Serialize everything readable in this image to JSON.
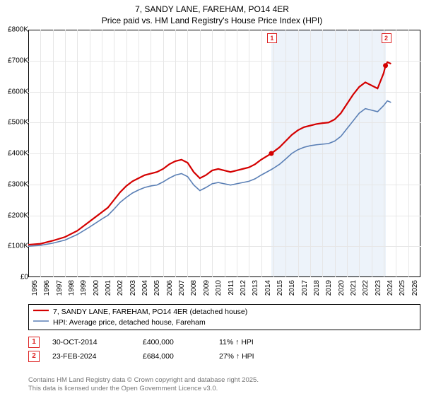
{
  "title_line1": "7, SANDY LANE, FAREHAM, PO14 4ER",
  "title_line2": "Price paid vs. HM Land Registry's House Price Index (HPI)",
  "chart": {
    "type": "line",
    "background_color": "#ffffff",
    "grid_color": "#e6e6e6",
    "highlight_band_color": "#e6eef8",
    "x_years": [
      1995,
      1996,
      1997,
      1998,
      1999,
      2000,
      2001,
      2002,
      2003,
      2004,
      2005,
      2006,
      2007,
      2008,
      2009,
      2010,
      2011,
      2012,
      2013,
      2014,
      2015,
      2016,
      2017,
      2018,
      2019,
      2020,
      2021,
      2022,
      2023,
      2024,
      2025,
      2026,
      2027
    ],
    "x_min": 1995,
    "x_max": 2027,
    "y_ticks": [
      0,
      100,
      200,
      300,
      400,
      500,
      600,
      700,
      800
    ],
    "y_tick_labels": [
      "£0",
      "£100K",
      "£200K",
      "£300K",
      "£400K",
      "£500K",
      "£600K",
      "£700K",
      "£800K"
    ],
    "y_min": 0,
    "y_max": 800,
    "highlight_x_from": 2014.83,
    "highlight_x_to": 2024.15,
    "series": [
      {
        "name": "7, SANDY LANE, FAREHAM, PO14 4ER (detached house)",
        "color": "#d40000",
        "stroke_width": 2.2,
        "points": [
          [
            1995.0,
            105
          ],
          [
            1996.0,
            108
          ],
          [
            1997.0,
            118
          ],
          [
            1998.0,
            130
          ],
          [
            1999.0,
            150
          ],
          [
            2000.0,
            180
          ],
          [
            2000.5,
            195
          ],
          [
            2001.0,
            210
          ],
          [
            2001.5,
            225
          ],
          [
            2002.0,
            250
          ],
          [
            2002.5,
            275
          ],
          [
            2003.0,
            295
          ],
          [
            2003.5,
            310
          ],
          [
            2004.0,
            320
          ],
          [
            2004.5,
            330
          ],
          [
            2005.0,
            335
          ],
          [
            2005.5,
            340
          ],
          [
            2006.0,
            350
          ],
          [
            2006.5,
            365
          ],
          [
            2007.0,
            375
          ],
          [
            2007.5,
            380
          ],
          [
            2008.0,
            370
          ],
          [
            2008.5,
            340
          ],
          [
            2009.0,
            320
          ],
          [
            2009.5,
            330
          ],
          [
            2010.0,
            345
          ],
          [
            2010.5,
            350
          ],
          [
            2011.0,
            345
          ],
          [
            2011.5,
            340
          ],
          [
            2012.0,
            345
          ],
          [
            2012.5,
            350
          ],
          [
            2013.0,
            355
          ],
          [
            2013.5,
            365
          ],
          [
            2014.0,
            380
          ],
          [
            2014.83,
            400
          ],
          [
            2015.0,
            405
          ],
          [
            2015.5,
            420
          ],
          [
            2016.0,
            440
          ],
          [
            2016.5,
            460
          ],
          [
            2017.0,
            475
          ],
          [
            2017.5,
            485
          ],
          [
            2018.0,
            490
          ],
          [
            2018.5,
            495
          ],
          [
            2019.0,
            498
          ],
          [
            2019.5,
            500
          ],
          [
            2020.0,
            510
          ],
          [
            2020.5,
            530
          ],
          [
            2021.0,
            560
          ],
          [
            2021.5,
            590
          ],
          [
            2022.0,
            615
          ],
          [
            2022.5,
            630
          ],
          [
            2023.0,
            620
          ],
          [
            2023.5,
            610
          ],
          [
            2024.0,
            660
          ],
          [
            2024.15,
            684
          ],
          [
            2024.3,
            695
          ],
          [
            2024.6,
            690
          ]
        ]
      },
      {
        "name": "HPI: Average price, detached house, Fareham",
        "color": "#5a7fb5",
        "stroke_width": 1.6,
        "points": [
          [
            1995.0,
            100
          ],
          [
            1996.0,
            103
          ],
          [
            1997.0,
            110
          ],
          [
            1998.0,
            120
          ],
          [
            1999.0,
            138
          ],
          [
            2000.0,
            162
          ],
          [
            2000.5,
            175
          ],
          [
            2001.0,
            188
          ],
          [
            2001.5,
            200
          ],
          [
            2002.0,
            220
          ],
          [
            2002.5,
            242
          ],
          [
            2003.0,
            258
          ],
          [
            2003.5,
            272
          ],
          [
            2004.0,
            282
          ],
          [
            2004.5,
            290
          ],
          [
            2005.0,
            295
          ],
          [
            2005.5,
            298
          ],
          [
            2006.0,
            308
          ],
          [
            2006.5,
            320
          ],
          [
            2007.0,
            330
          ],
          [
            2007.5,
            335
          ],
          [
            2008.0,
            325
          ],
          [
            2008.5,
            298
          ],
          [
            2009.0,
            280
          ],
          [
            2009.5,
            290
          ],
          [
            2010.0,
            302
          ],
          [
            2010.5,
            306
          ],
          [
            2011.0,
            302
          ],
          [
            2011.5,
            298
          ],
          [
            2012.0,
            302
          ],
          [
            2012.5,
            306
          ],
          [
            2013.0,
            310
          ],
          [
            2013.5,
            318
          ],
          [
            2014.0,
            330
          ],
          [
            2014.83,
            348
          ],
          [
            2015.0,
            352
          ],
          [
            2015.5,
            365
          ],
          [
            2016.0,
            382
          ],
          [
            2016.5,
            400
          ],
          [
            2017.0,
            412
          ],
          [
            2017.5,
            420
          ],
          [
            2018.0,
            425
          ],
          [
            2018.5,
            428
          ],
          [
            2019.0,
            430
          ],
          [
            2019.5,
            432
          ],
          [
            2020.0,
            440
          ],
          [
            2020.5,
            455
          ],
          [
            2021.0,
            480
          ],
          [
            2021.5,
            505
          ],
          [
            2022.0,
            530
          ],
          [
            2022.5,
            545
          ],
          [
            2023.0,
            540
          ],
          [
            2023.5,
            535
          ],
          [
            2024.0,
            555
          ],
          [
            2024.3,
            570
          ],
          [
            2024.6,
            565
          ]
        ]
      }
    ],
    "markers": [
      {
        "label": "1",
        "x": 2014.83,
        "y": 400,
        "dot_color": "#d40000"
      },
      {
        "label": "2",
        "x": 2024.15,
        "y": 684,
        "dot_color": "#d40000"
      }
    ]
  },
  "legend": {
    "items": [
      {
        "color": "#d40000",
        "width": 2.2,
        "label": "7, SANDY LANE, FAREHAM, PO14 4ER (detached house)"
      },
      {
        "color": "#5a7fb5",
        "width": 1.6,
        "label": "HPI: Average price, detached house, Fareham"
      }
    ]
  },
  "data_points": [
    {
      "marker": "1",
      "date": "30-OCT-2014",
      "price": "£400,000",
      "delta": "11% ↑ HPI"
    },
    {
      "marker": "2",
      "date": "23-FEB-2024",
      "price": "£684,000",
      "delta": "27% ↑ HPI"
    }
  ],
  "footer_line1": "Contains HM Land Registry data © Crown copyright and database right 2025.",
  "footer_line2": "This data is licensed under the Open Government Licence v3.0."
}
